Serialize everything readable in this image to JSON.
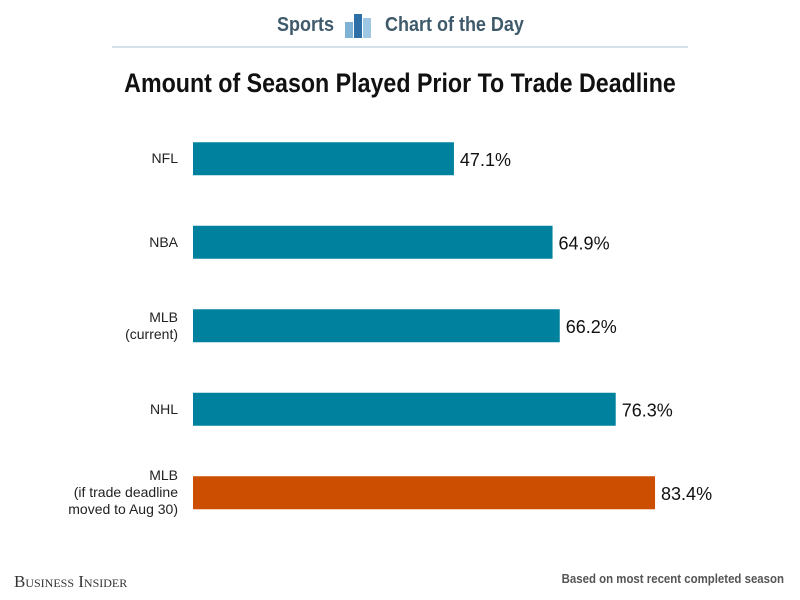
{
  "chart_data": {
    "type": "bar",
    "orientation": "horizontal",
    "header_left": "Sports",
    "header_right": "Chart of the Day",
    "title": "Amount of Season Played Prior To Trade Deadline",
    "categories": [
      "NFL",
      "NBA",
      "MLB\n(current)",
      "NHL",
      "MLB\n(if trade deadline\nmoved to Aug 30)"
    ],
    "values": [
      47.1,
      64.9,
      66.2,
      76.3,
      83.4
    ],
    "value_labels": [
      "47.1%",
      "64.9%",
      "66.2%",
      "76.3%",
      "83.4%"
    ],
    "colors": [
      "#00819e",
      "#00819e",
      "#00819e",
      "#00819e",
      "#cc4e00"
    ],
    "source": "Business Insider",
    "note": "Based on most recent completed season"
  }
}
